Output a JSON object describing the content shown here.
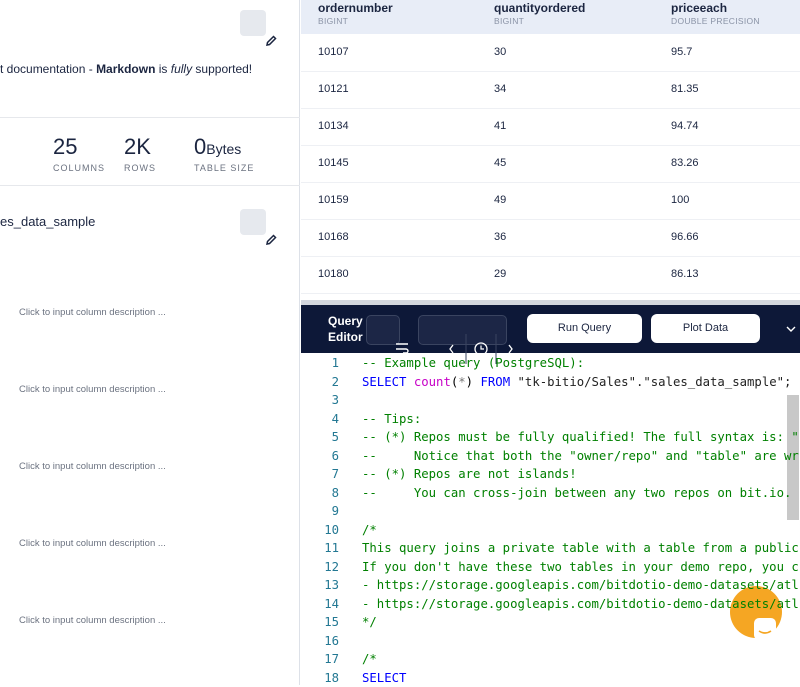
{
  "left_panel": {
    "description": [
      {
        "text": "t documentation - "
      },
      {
        "text": "Markdown",
        "style": "bold"
      },
      {
        "text": " is "
      },
      {
        "text": "fully",
        "style": "italic"
      },
      {
        "text": " supported!"
      }
    ],
    "stats": [
      {
        "value": "25",
        "label": "COLUMNS"
      },
      {
        "value": "2K",
        "label": "ROWS"
      },
      {
        "value": "0",
        "unit": "Bytes",
        "label": "TABLE SIZE"
      }
    ],
    "table_name": "es_data_sample",
    "column_placeholders": [
      "Click to input column description ...",
      "Click to input column description ...",
      "Click to input column description ...",
      "Click to input column description ...",
      "Click to input column description ..."
    ]
  },
  "table": {
    "columns": [
      {
        "name": "ordernumber",
        "type": "BIGINT"
      },
      {
        "name": "quantityordered",
        "type": "BIGINT"
      },
      {
        "name": "priceeach",
        "type": "DOUBLE PRECISION"
      }
    ],
    "rows": [
      [
        "10107",
        "30",
        "95.7"
      ],
      [
        "10121",
        "34",
        "81.35"
      ],
      [
        "10134",
        "41",
        "94.74"
      ],
      [
        "10145",
        "45",
        "83.26"
      ],
      [
        "10159",
        "49",
        "100"
      ],
      [
        "10168",
        "36",
        "96.66"
      ],
      [
        "10180",
        "29",
        "86.13"
      ]
    ]
  },
  "toolbar": {
    "title": [
      "Query",
      "Editor"
    ],
    "buttons": [
      "Run Query",
      "Plot Data"
    ]
  },
  "editor": {
    "lines": [
      {
        "number": 1,
        "segments": [
          {
            "text": "-- Example query (PostgreSQL):",
            "color": "#008000"
          }
        ]
      },
      {
        "number": 2,
        "segments": [
          {
            "text": "SELECT ",
            "color": "#0000ff"
          },
          {
            "text": "count",
            "color": "#c700c7"
          },
          {
            "text": "(",
            "color": "#000000"
          },
          {
            "text": "*",
            "color": "#777777"
          },
          {
            "text": ") ",
            "color": "#000000"
          },
          {
            "text": "FROM ",
            "color": "#0000ff"
          },
          {
            "text": "\"tk-bitio/Sales\".\"sales_data_sample\";",
            "color": "#222222"
          }
        ]
      },
      {
        "number": 3
      },
      {
        "number": 4,
        "segments": [
          {
            "text": "-- Tips:",
            "color": "#008000"
          }
        ]
      },
      {
        "number": 5,
        "segments": [
          {
            "text": "-- (*) Repos must be fully qualified! The full syntax is: \"",
            "color": "#008000"
          }
        ]
      },
      {
        "number": 6,
        "segments": [
          {
            "text": "--     Notice that both the \"owner/repo\" and \"table\" are wr",
            "color": "#008000"
          }
        ]
      },
      {
        "number": 7,
        "segments": [
          {
            "text": "-- (*) Repos are not islands!",
            "color": "#008000"
          }
        ]
      },
      {
        "number": 8,
        "segments": [
          {
            "text": "--     You can cross-join between any two repos on bit.io.",
            "color": "#008000"
          }
        ]
      },
      {
        "number": 9
      },
      {
        "number": 10,
        "segments": [
          {
            "text": "/*",
            "color": "#008000"
          }
        ]
      },
      {
        "number": 11,
        "segments": [
          {
            "text": "This query joins a private table with a table from a public",
            "color": "#008000"
          }
        ]
      },
      {
        "number": 12,
        "segments": [
          {
            "text": "If you don't have these two tables in your demo repo, you c",
            "color": "#008000"
          }
        ]
      },
      {
        "number": 13,
        "segments": [
          {
            "text": "- https://storage.googleapis.com/bitdotio-demo-datasets/atl",
            "color": "#008000"
          }
        ]
      },
      {
        "number": 14,
        "segments": [
          {
            "text": "- https://storage.googleapis.com/bitdotio-demo-datasets/atl",
            "color": "#008000"
          }
        ]
      },
      {
        "number": 15,
        "segments": [
          {
            "text": "*/",
            "color": "#008000"
          }
        ]
      },
      {
        "number": 16
      },
      {
        "number": 17,
        "segments": [
          {
            "text": "/*",
            "color": "#008000"
          }
        ]
      },
      {
        "number": 18,
        "segments": [
          {
            "text": "SELECT",
            "color": "#0000ff"
          }
        ]
      }
    ]
  }
}
